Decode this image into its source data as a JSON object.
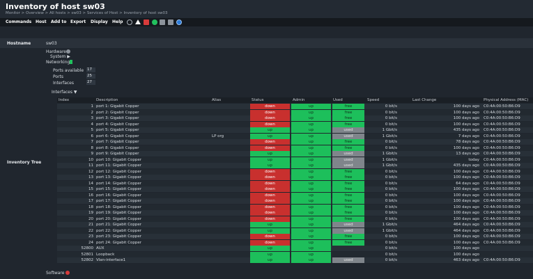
{
  "header": {
    "title": "Inventory of host sw03",
    "breadcrumb": "Monitor > Overview > All hosts > sw03 > Services of Host > Inventory of host sw03"
  },
  "menu": [
    "Commands",
    "Host",
    "Add to",
    "Export",
    "Display",
    "Help"
  ],
  "toolbar_icons": [
    "minus-circle-icon",
    "warning-icon",
    "alert-icon",
    "help-icon",
    "list-icon",
    "settings-icon",
    "info-icon"
  ],
  "hostname": {
    "label": "Hostname",
    "value": "sw03"
  },
  "inventory_tree_label": "Inventory Tree",
  "tree": {
    "hardware": "Hardware",
    "system": "System ▶",
    "networking": "Networking",
    "ports_available_label": "Ports available",
    "ports_available": "17",
    "ports_label": "Ports",
    "ports": "25",
    "interfaces_label": "Interfaces",
    "interfaces": "27",
    "interfaces_toggle": "Interfaces ▼",
    "software": "Software"
  },
  "table": {
    "columns": [
      "Index",
      "Description",
      "Alias",
      "Status",
      "Admin",
      "Used",
      "Speed",
      "Last Change",
      "Physical Address (MAC)"
    ],
    "rows": [
      {
        "index": "1",
        "desc": "port 1: Gigabit Copper",
        "alias": "",
        "status": "down",
        "admin": "up",
        "used": "free",
        "speed": "0 bit/s",
        "last": "100 days ago",
        "mac": "C0:4A:00:50:B6:D9"
      },
      {
        "index": "2",
        "desc": "port 2: Gigabit Copper",
        "alias": "",
        "status": "down",
        "admin": "up",
        "used": "free",
        "speed": "0 bit/s",
        "last": "100 days ago",
        "mac": "C0:4A:00:50:B6:D9"
      },
      {
        "index": "3",
        "desc": "port 3: Gigabit Copper",
        "alias": "",
        "status": "down",
        "admin": "up",
        "used": "free",
        "speed": "0 bit/s",
        "last": "100 days ago",
        "mac": "C0:4A:00:50:B6:D9"
      },
      {
        "index": "4",
        "desc": "port 4: Gigabit Copper",
        "alias": "",
        "status": "down",
        "admin": "up",
        "used": "free",
        "speed": "0 bit/s",
        "last": "100 days ago",
        "mac": "C0:4A:00:50:B6:D9"
      },
      {
        "index": "5",
        "desc": "port 5: Gigabit Copper",
        "alias": "",
        "status": "up",
        "admin": "up",
        "used": "used",
        "speed": "1 Gbit/s",
        "last": "435 days ago",
        "mac": "C0:4A:00:50:B6:D9"
      },
      {
        "index": "6",
        "desc": "port 6: Gigabit Copper",
        "alias": "LP org",
        "status": "up",
        "admin": "up",
        "used": "used",
        "speed": "1 Gbit/s",
        "last": "7 days ago",
        "mac": "C0:4A:00:50:B6:D9"
      },
      {
        "index": "7",
        "desc": "port 7: Gigabit Copper",
        "alias": "",
        "status": "down",
        "admin": "up",
        "used": "free",
        "speed": "0 bit/s",
        "last": "78 days ago",
        "mac": "C0:4A:00:50:B6:D9"
      },
      {
        "index": "8",
        "desc": "port 8: Gigabit Copper",
        "alias": "",
        "status": "down",
        "admin": "up",
        "used": "free",
        "speed": "0 bit/s",
        "last": "100 days ago",
        "mac": "C0:4A:00:50:B6:D9"
      },
      {
        "index": "9",
        "desc": "port 9: Gigabit Copper",
        "alias": "",
        "status": "up",
        "admin": "up",
        "used": "used",
        "speed": "1 Gbit/s",
        "last": "13 days ago",
        "mac": "C0:4A:00:50:B6:D9"
      },
      {
        "index": "10",
        "desc": "port 10: Gigabit Copper",
        "alias": "",
        "status": "up",
        "admin": "up",
        "used": "used",
        "speed": "1 Gbit/s",
        "last": "today",
        "mac": "C0:4A:00:50:B6:D9"
      },
      {
        "index": "11",
        "desc": "port 11: Gigabit Copper",
        "alias": "",
        "status": "up",
        "admin": "up",
        "used": "used",
        "speed": "1 Gbit/s",
        "last": "435 days ago",
        "mac": "C0:4A:00:50:B6:D9"
      },
      {
        "index": "12",
        "desc": "port 12: Gigabit Copper",
        "alias": "",
        "status": "down",
        "admin": "up",
        "used": "free",
        "speed": "0 bit/s",
        "last": "100 days ago",
        "mac": "C0:4A:00:50:B6:D9"
      },
      {
        "index": "13",
        "desc": "port 13: Gigabit Copper",
        "alias": "",
        "status": "down",
        "admin": "up",
        "used": "free",
        "speed": "0 bit/s",
        "last": "100 days ago",
        "mac": "C0:4A:00:50:B6:D9"
      },
      {
        "index": "14",
        "desc": "port 14: Gigabit Copper",
        "alias": "",
        "status": "down",
        "admin": "up",
        "used": "free",
        "speed": "0 bit/s",
        "last": "64 days ago",
        "mac": "C0:4A:00:50:B6:D9"
      },
      {
        "index": "15",
        "desc": "port 15: Gigabit Copper",
        "alias": "",
        "status": "down",
        "admin": "up",
        "used": "free",
        "speed": "0 bit/s",
        "last": "100 days ago",
        "mac": "C0:4A:00:50:B6:D9"
      },
      {
        "index": "16",
        "desc": "port 16: Gigabit Copper",
        "alias": "",
        "status": "down",
        "admin": "up",
        "used": "free",
        "speed": "0 bit/s",
        "last": "100 days ago",
        "mac": "C0:4A:00:50:B6:D9"
      },
      {
        "index": "17",
        "desc": "port 17: Gigabit Copper",
        "alias": "",
        "status": "down",
        "admin": "up",
        "used": "free",
        "speed": "0 bit/s",
        "last": "100 days ago",
        "mac": "C0:4A:00:50:B6:D9"
      },
      {
        "index": "18",
        "desc": "port 18: Gigabit Copper",
        "alias": "",
        "status": "down",
        "admin": "up",
        "used": "free",
        "speed": "0 bit/s",
        "last": "100 days ago",
        "mac": "C0:4A:00:50:B6:D9"
      },
      {
        "index": "19",
        "desc": "port 19: Gigabit Copper",
        "alias": "",
        "status": "down",
        "admin": "up",
        "used": "free",
        "speed": "0 bit/s",
        "last": "100 days ago",
        "mac": "C0:4A:00:50:B6:D9"
      },
      {
        "index": "20",
        "desc": "port 20: Gigabit Copper",
        "alias": "",
        "status": "down",
        "admin": "up",
        "used": "free",
        "speed": "0 bit/s",
        "last": "100 days ago",
        "mac": "C0:4A:00:50:B6:D9"
      },
      {
        "index": "21",
        "desc": "port 21: Gigabit Copper",
        "alias": "",
        "status": "up",
        "admin": "up",
        "used": "used",
        "speed": "1 Gbit/s",
        "last": "464 days ago",
        "mac": "C0:4A:00:50:B6:D9"
      },
      {
        "index": "22",
        "desc": "port 22: Gigabit Copper",
        "alias": "",
        "status": "up",
        "admin": "up",
        "used": "used",
        "speed": "1 Gbit/s",
        "last": "464 days ago",
        "mac": "C0:4A:00:50:B6:D9"
      },
      {
        "index": "23",
        "desc": "port 23: Gigabit Copper",
        "alias": "",
        "status": "down",
        "admin": "up",
        "used": "free",
        "speed": "0 bit/s",
        "last": "100 days ago",
        "mac": "C0:4A:00:50:B6:D9"
      },
      {
        "index": "24",
        "desc": "port 24: Gigabit Copper",
        "alias": "",
        "status": "down",
        "admin": "up",
        "used": "free",
        "speed": "0 bit/s",
        "last": "100 days ago",
        "mac": "C0:4A:00:50:B6:D9"
      },
      {
        "index": "52800",
        "desc": "AUX",
        "alias": "",
        "status": "up",
        "admin": "up",
        "used": "",
        "speed": "0 bit/s",
        "last": "100 days ago",
        "mac": ""
      },
      {
        "index": "52801",
        "desc": "Loopback",
        "alias": "",
        "status": "up",
        "admin": "up",
        "used": "",
        "speed": "0 bit/s",
        "last": "100 days ago",
        "mac": ""
      },
      {
        "index": "52802",
        "desc": "Vlan-interface1",
        "alias": "",
        "status": "up",
        "admin": "up",
        "used": "used",
        "speed": "0 bit/s",
        "last": "463 days ago",
        "mac": "C0:4A:00:50:B6:D9"
      }
    ]
  },
  "colors": {
    "down": "#c8302e",
    "up": "#1dbf5b",
    "used": "#7f858b",
    "background": "#20262e"
  }
}
